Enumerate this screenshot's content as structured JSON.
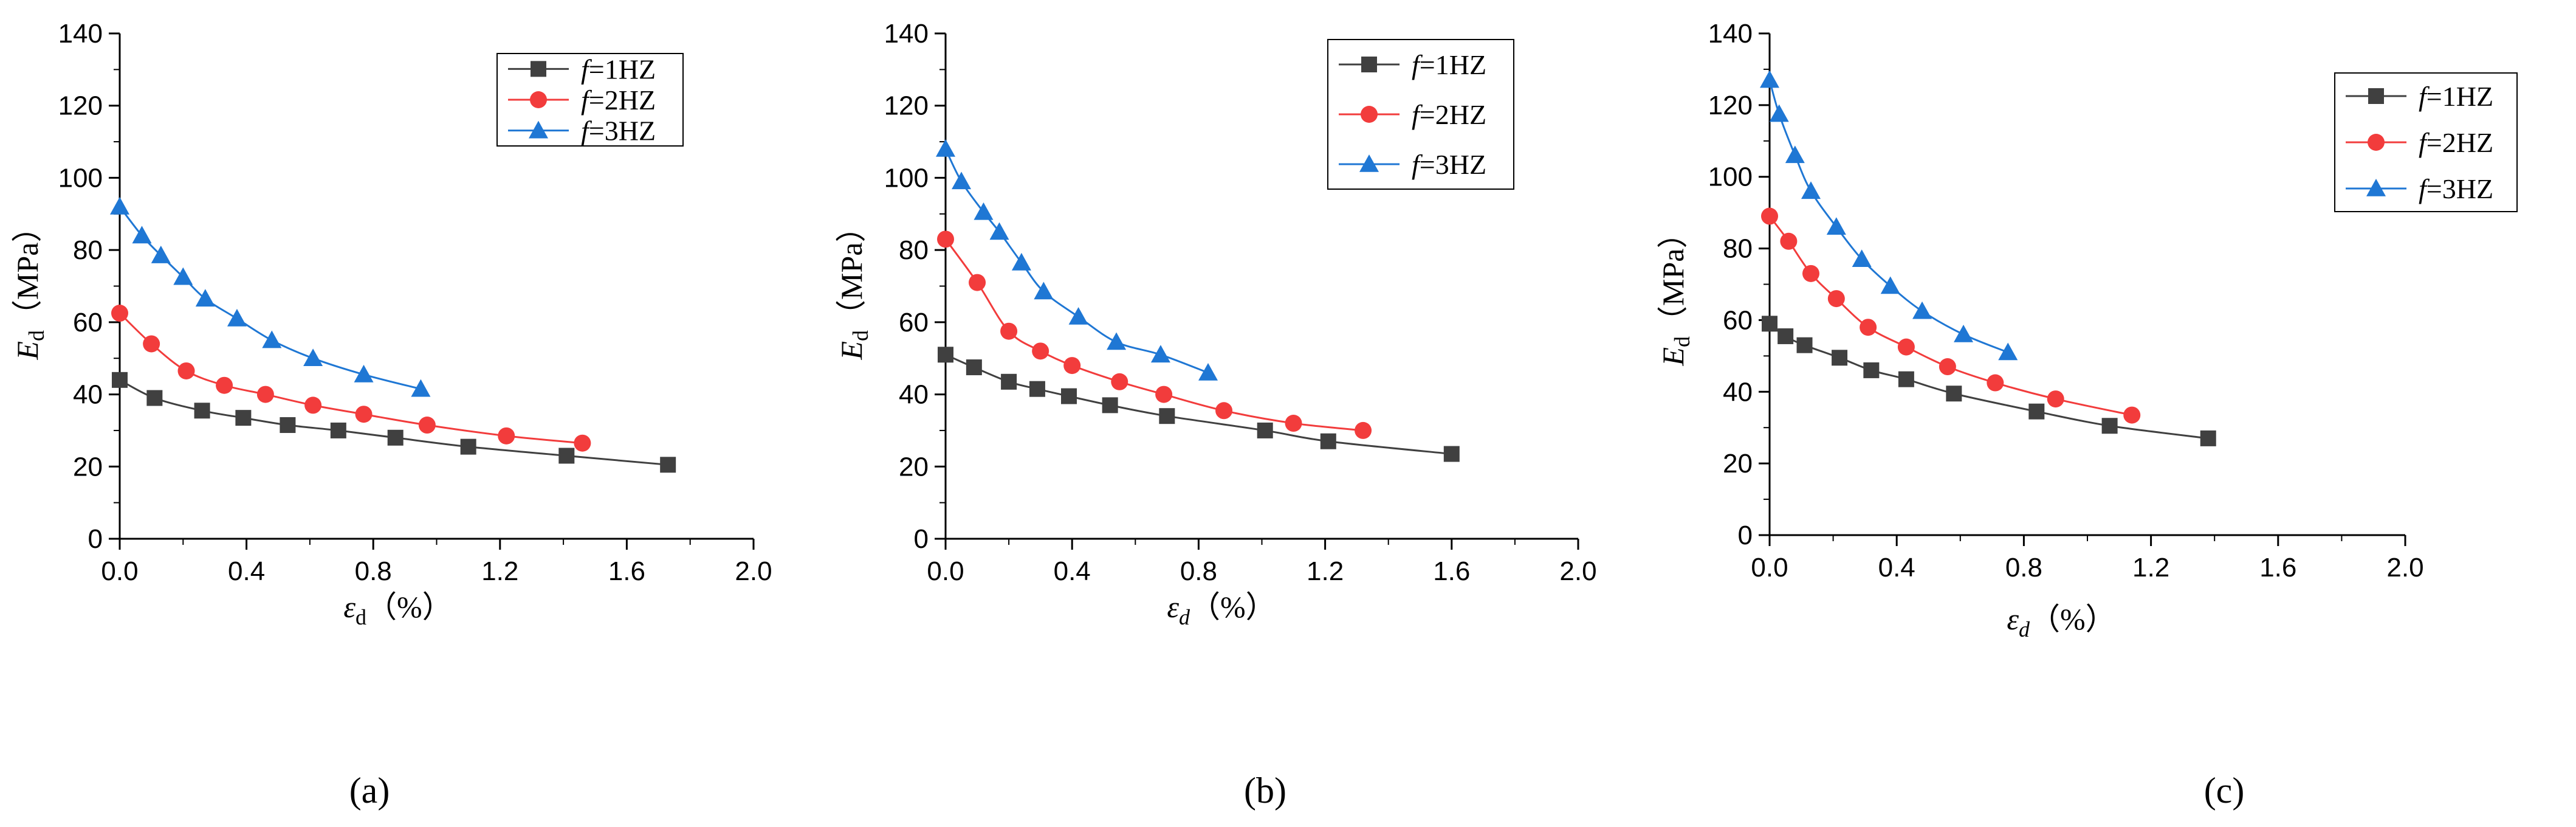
{
  "chart_data": [
    {
      "type": "line",
      "panel_label": "(a)",
      "xlabel_symbol": "ε",
      "xlabel_subscript": "d",
      "xlabel_unit": "（%）",
      "xlabel_subscript_italic": false,
      "ylabel_symbol": "E",
      "ylabel_subscript": "d",
      "ylabel_unit": "（MPa）",
      "xlim": [
        0,
        2.0
      ],
      "ylim": [
        0,
        140
      ],
      "xticks": [
        "0.0",
        "0.4",
        "0.8",
        "1.2",
        "1.6",
        "2.0"
      ],
      "yticks": [
        "0",
        "20",
        "40",
        "60",
        "80",
        "100",
        "120",
        "140"
      ],
      "legend_position": "top-right",
      "series": [
        {
          "name": "f=1HZ",
          "label_prefix": "f",
          "label_suffix": "=1HZ",
          "color": "#404040",
          "marker": "square",
          "x": [
            0.0,
            0.11,
            0.26,
            0.39,
            0.53,
            0.69,
            0.87,
            1.1,
            1.41,
            1.73
          ],
          "y": [
            44,
            39,
            35.5,
            33.5,
            31.5,
            30,
            28,
            25.5,
            23,
            20.5
          ]
        },
        {
          "name": "f=2HZ",
          "label_prefix": "f",
          "label_suffix": "=2HZ",
          "color": "#f23c3c",
          "marker": "circle",
          "x": [
            0.0,
            0.1,
            0.21,
            0.33,
            0.46,
            0.61,
            0.77,
            0.97,
            1.22,
            1.46
          ],
          "y": [
            62.5,
            54,
            46.5,
            42.5,
            40,
            37,
            34.5,
            31.5,
            28.5,
            26.5
          ]
        },
        {
          "name": "f=3HZ",
          "label_prefix": "f",
          "label_suffix": "=3HZ",
          "color": "#1f77d4",
          "marker": "triangle",
          "x": [
            0.0,
            0.07,
            0.13,
            0.2,
            0.27,
            0.37,
            0.48,
            0.61,
            0.77,
            0.95
          ],
          "y": [
            92,
            84,
            78.5,
            72.5,
            66.5,
            61,
            55,
            50,
            45.5,
            41.5
          ]
        }
      ]
    },
    {
      "type": "line",
      "panel_label": "(b)",
      "xlabel_symbol": "ε",
      "xlabel_subscript": "d",
      "xlabel_unit": "（%）",
      "xlabel_subscript_italic": true,
      "ylabel_symbol": "E",
      "ylabel_subscript": "d",
      "ylabel_unit": "（MPa）",
      "xlim": [
        0,
        2.0
      ],
      "ylim": [
        0,
        140
      ],
      "xticks": [
        "0.0",
        "0.4",
        "0.8",
        "1.2",
        "1.6",
        "2.0"
      ],
      "yticks": [
        "0",
        "20",
        "40",
        "60",
        "80",
        "100",
        "120",
        "140"
      ],
      "legend_position": "top-right",
      "series": [
        {
          "name": "f=1HZ",
          "label_prefix": "f",
          "label_suffix": "=1HZ",
          "color": "#404040",
          "marker": "square",
          "x": [
            0.0,
            0.09,
            0.2,
            0.29,
            0.39,
            0.52,
            0.7,
            1.01,
            1.21,
            1.6
          ],
          "y": [
            51,
            47.5,
            43.5,
            41.5,
            39.5,
            37,
            34,
            30,
            27,
            23.5
          ]
        },
        {
          "name": "f=2HZ",
          "label_prefix": "f",
          "label_suffix": "=2HZ",
          "color": "#f23c3c",
          "marker": "circle",
          "x": [
            0.0,
            0.1,
            0.2,
            0.3,
            0.4,
            0.55,
            0.69,
            0.88,
            1.1,
            1.32
          ],
          "y": [
            83,
            71,
            57.5,
            52,
            48,
            43.5,
            40,
            35.5,
            32,
            30
          ]
        },
        {
          "name": "f=3HZ",
          "label_prefix": "f",
          "label_suffix": "=3HZ",
          "color": "#1f77d4",
          "marker": "triangle",
          "x": [
            0.0,
            0.05,
            0.12,
            0.17,
            0.24,
            0.31,
            0.42,
            0.54,
            0.68,
            0.83
          ],
          "y": [
            108,
            99,
            90.5,
            85,
            76.5,
            68.5,
            61.5,
            54.5,
            51,
            46
          ]
        }
      ]
    },
    {
      "type": "line",
      "panel_label": "(c)",
      "xlabel_symbol": "ε",
      "xlabel_subscript": "d",
      "xlabel_unit": "（%）",
      "xlabel_subscript_italic": true,
      "ylabel_symbol": "E",
      "ylabel_subscript": "d",
      "ylabel_unit": "（MPa）",
      "xlim": [
        0,
        2.0
      ],
      "ylim": [
        0,
        140
      ],
      "xticks": [
        "0.0",
        "0.4",
        "0.8",
        "1.2",
        "1.6",
        "2.0"
      ],
      "yticks": [
        "0",
        "20",
        "40",
        "60",
        "80",
        "100",
        "120",
        "140"
      ],
      "legend_position": "top-right",
      "series": [
        {
          "name": "f=1HZ",
          "label_prefix": "f",
          "label_suffix": "=1HZ",
          "color": "#404040",
          "marker": "square",
          "x": [
            0.0,
            0.05,
            0.11,
            0.22,
            0.32,
            0.43,
            0.58,
            0.84,
            1.07,
            1.38
          ],
          "y": [
            59,
            55.5,
            53,
            49.5,
            46,
            43.5,
            39.5,
            34.5,
            30.5,
            27
          ]
        },
        {
          "name": "f=2HZ",
          "label_prefix": "f",
          "label_suffix": "=2HZ",
          "color": "#f23c3c",
          "marker": "circle",
          "x": [
            0.0,
            0.06,
            0.13,
            0.21,
            0.31,
            0.43,
            0.56,
            0.71,
            0.9,
            1.14
          ],
          "y": [
            89,
            82,
            73,
            66,
            58,
            52.5,
            47,
            42.5,
            38,
            33.5
          ]
        },
        {
          "name": "f=3HZ",
          "label_prefix": "f",
          "label_suffix": "=3HZ",
          "color": "#1f77d4",
          "marker": "triangle",
          "x": [
            0.0,
            0.03,
            0.08,
            0.13,
            0.21,
            0.29,
            0.38,
            0.48,
            0.61,
            0.75
          ],
          "y": [
            127,
            117.5,
            106,
            96,
            86,
            77,
            69.5,
            62.5,
            56,
            51
          ]
        }
      ]
    }
  ]
}
